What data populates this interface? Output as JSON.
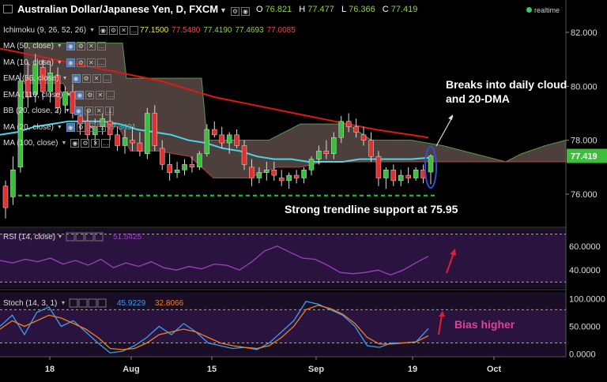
{
  "header": {
    "title": "Australian Dollar/Japanese Yen, D, FXCM",
    "ohlc": [
      {
        "k": "O",
        "v": "76.821"
      },
      {
        "k": "H",
        "v": "77.477"
      },
      {
        "k": "L",
        "v": "76.366"
      },
      {
        "k": "C",
        "v": "77.419"
      }
    ],
    "realtime": "realtime"
  },
  "indicators": [
    {
      "name": "Ichimoku (9, 26, 52, 26)",
      "values": [
        {
          "v": "77.1500",
          "c": "#e6e84a"
        },
        {
          "v": "77.5480",
          "c": "#e05050"
        },
        {
          "v": "77.4190",
          "c": "#8fd14f"
        },
        {
          "v": "77.4693",
          "c": "#8fd14f"
        },
        {
          "v": "77.0085",
          "c": "#e05050"
        }
      ]
    },
    {
      "name": "MA (50, close)",
      "values": []
    },
    {
      "name": "MA (10, close)",
      "values": []
    },
    {
      "name": "EMA (55, close)",
      "values": []
    },
    {
      "name": "EMA (110, close)",
      "values": []
    },
    {
      "name": "BB (20, close, 2)",
      "values": []
    },
    {
      "name": "MA (20, close)",
      "values": [
        {
          "v": "77.3491",
          "c": "#35c8e0"
        }
      ]
    },
    {
      "name": "MA (100, close)",
      "values": []
    }
  ],
  "annotations": {
    "breaks": [
      "Breaks into daily cloud",
      "and 20-DMA"
    ],
    "support": "Strong trendline support at 75.95",
    "bias": "Bias higher"
  },
  "rsi": {
    "label": "RSI (14, close)",
    "value": "51.5425"
  },
  "stoch": {
    "label": "Stoch (14, 3, 1)",
    "k": "45.9229",
    "d": "32.8066"
  },
  "price_axis": {
    "ticks": [
      "82.000",
      "80.000",
      "78.000",
      "76.000"
    ],
    "last": "77.419"
  },
  "rsi_axis": {
    "ticks": [
      "60.0000",
      "40.0000"
    ]
  },
  "stoch_axis": {
    "ticks": [
      "100.0000",
      "50.0000",
      "0.0000"
    ]
  },
  "time_axis": [
    "18",
    "Aug",
    "15",
    "Sep",
    "19",
    "Oct"
  ],
  "chart_data": {
    "type": "candlestick",
    "title": "Australian Dollar/Japanese Yen, D, FXCM",
    "price_ylim": [
      74.8,
      83.2
    ],
    "xlabels": [
      "18",
      "Aug",
      "15",
      "Sep",
      "19",
      "Oct"
    ],
    "candles": [
      {
        "o": 76.3,
        "h": 76.5,
        "l": 75.1,
        "c": 75.5
      },
      {
        "o": 75.9,
        "h": 77.4,
        "l": 75.6,
        "c": 76.9
      },
      {
        "o": 77.0,
        "h": 80.5,
        "l": 76.8,
        "c": 80.2
      },
      {
        "o": 80.3,
        "h": 80.9,
        "l": 79.2,
        "c": 79.6
      },
      {
        "o": 79.7,
        "h": 81.2,
        "l": 79.4,
        "c": 80.8
      },
      {
        "o": 80.7,
        "h": 81.0,
        "l": 79.5,
        "c": 79.8
      },
      {
        "o": 79.8,
        "h": 80.9,
        "l": 79.4,
        "c": 80.5
      },
      {
        "o": 80.4,
        "h": 80.7,
        "l": 79.0,
        "c": 79.2
      },
      {
        "o": 79.3,
        "h": 80.0,
        "l": 79.0,
        "c": 79.8
      },
      {
        "o": 79.8,
        "h": 80.1,
        "l": 78.8,
        "c": 79.0
      },
      {
        "o": 78.9,
        "h": 79.2,
        "l": 78.2,
        "c": 78.6
      },
      {
        "o": 78.7,
        "h": 79.1,
        "l": 78.0,
        "c": 78.2
      },
      {
        "o": 78.2,
        "h": 78.8,
        "l": 77.8,
        "c": 78.5
      },
      {
        "o": 78.5,
        "h": 79.0,
        "l": 78.2,
        "c": 78.8
      },
      {
        "o": 78.7,
        "h": 79.2,
        "l": 78.0,
        "c": 78.2
      },
      {
        "o": 78.2,
        "h": 78.5,
        "l": 77.6,
        "c": 77.8
      },
      {
        "o": 77.8,
        "h": 78.4,
        "l": 77.5,
        "c": 78.1
      },
      {
        "o": 78.0,
        "h": 78.5,
        "l": 77.6,
        "c": 77.9
      },
      {
        "o": 77.9,
        "h": 78.3,
        "l": 77.4,
        "c": 77.6
      },
      {
        "o": 77.5,
        "h": 79.2,
        "l": 77.3,
        "c": 79.0
      },
      {
        "o": 79.0,
        "h": 79.3,
        "l": 77.6,
        "c": 77.8
      },
      {
        "o": 77.7,
        "h": 78.0,
        "l": 76.9,
        "c": 77.1
      },
      {
        "o": 77.1,
        "h": 77.5,
        "l": 76.5,
        "c": 76.8
      },
      {
        "o": 76.8,
        "h": 77.2,
        "l": 76.6,
        "c": 76.9
      },
      {
        "o": 76.9,
        "h": 77.3,
        "l": 76.7,
        "c": 77.1
      },
      {
        "o": 77.1,
        "h": 77.4,
        "l": 76.8,
        "c": 77.0
      },
      {
        "o": 77.0,
        "h": 77.6,
        "l": 76.9,
        "c": 77.5
      },
      {
        "o": 77.5,
        "h": 78.6,
        "l": 77.4,
        "c": 78.4
      },
      {
        "o": 78.4,
        "h": 78.7,
        "l": 78.1,
        "c": 78.2
      },
      {
        "o": 78.2,
        "h": 78.5,
        "l": 77.7,
        "c": 77.9
      },
      {
        "o": 77.9,
        "h": 78.3,
        "l": 77.5,
        "c": 78.2
      },
      {
        "o": 78.2,
        "h": 78.4,
        "l": 77.7,
        "c": 77.8
      },
      {
        "o": 77.8,
        "h": 78.0,
        "l": 76.9,
        "c": 77.1
      },
      {
        "o": 77.0,
        "h": 77.3,
        "l": 76.3,
        "c": 76.6
      },
      {
        "o": 76.6,
        "h": 77.0,
        "l": 76.4,
        "c": 76.8
      },
      {
        "o": 76.8,
        "h": 77.2,
        "l": 76.5,
        "c": 76.9
      },
      {
        "o": 76.9,
        "h": 77.2,
        "l": 76.5,
        "c": 76.7
      },
      {
        "o": 76.6,
        "h": 76.9,
        "l": 76.3,
        "c": 76.5
      },
      {
        "o": 76.5,
        "h": 76.8,
        "l": 76.2,
        "c": 76.7
      },
      {
        "o": 76.7,
        "h": 76.9,
        "l": 76.4,
        "c": 76.6
      },
      {
        "o": 76.6,
        "h": 77.0,
        "l": 76.4,
        "c": 76.9
      },
      {
        "o": 76.9,
        "h": 77.4,
        "l": 76.7,
        "c": 77.3
      },
      {
        "o": 77.3,
        "h": 77.8,
        "l": 77.1,
        "c": 77.6
      },
      {
        "o": 77.6,
        "h": 78.0,
        "l": 77.3,
        "c": 77.5
      },
      {
        "o": 77.5,
        "h": 78.3,
        "l": 77.3,
        "c": 78.1
      },
      {
        "o": 78.1,
        "h": 78.9,
        "l": 77.9,
        "c": 78.7
      },
      {
        "o": 78.7,
        "h": 79.0,
        "l": 78.3,
        "c": 78.5
      },
      {
        "o": 78.5,
        "h": 78.8,
        "l": 78.1,
        "c": 78.3
      },
      {
        "o": 78.2,
        "h": 78.5,
        "l": 77.8,
        "c": 78.0
      },
      {
        "o": 78.0,
        "h": 78.3,
        "l": 77.2,
        "c": 77.4
      },
      {
        "o": 77.4,
        "h": 77.6,
        "l": 76.3,
        "c": 76.6
      },
      {
        "o": 76.6,
        "h": 77.0,
        "l": 76.2,
        "c": 76.9
      },
      {
        "o": 76.9,
        "h": 77.1,
        "l": 76.3,
        "c": 76.5
      },
      {
        "o": 76.5,
        "h": 76.9,
        "l": 76.3,
        "c": 76.7
      },
      {
        "o": 76.7,
        "h": 77.0,
        "l": 76.4,
        "c": 76.6
      },
      {
        "o": 76.6,
        "h": 77.0,
        "l": 76.5,
        "c": 76.9
      },
      {
        "o": 76.9,
        "h": 77.1,
        "l": 76.4,
        "c": 76.6
      },
      {
        "o": 76.821,
        "h": 77.477,
        "l": 76.366,
        "c": 77.419
      }
    ],
    "ma20": [
      78.2,
      78.3,
      78.5,
      78.6,
      78.7,
      78.7,
      78.7,
      78.6,
      78.4,
      78.3,
      78.2,
      78.0,
      77.9,
      77.7,
      77.6,
      77.4,
      77.3,
      77.3,
      77.2,
      77.2,
      77.2,
      77.3,
      77.3,
      77.3,
      77.3,
      77.35
    ],
    "ma100": [
      81.4,
      81.2,
      81.0,
      80.8,
      80.6,
      80.4,
      80.2,
      79.9,
      79.6,
      79.4,
      79.2,
      79.0,
      78.8,
      78.6,
      78.4,
      78.25,
      78.1
    ],
    "rsi": [
      48,
      46,
      49,
      47,
      50,
      45,
      48,
      44,
      49,
      42,
      46,
      43,
      47,
      42,
      40,
      43,
      41,
      45,
      44,
      40,
      47,
      56,
      60,
      55,
      50,
      49,
      44,
      38,
      37,
      38,
      40,
      36,
      40,
      46,
      51.5
    ],
    "stoch_k": [
      50,
      70,
      35,
      75,
      85,
      50,
      60,
      40,
      20,
      2,
      5,
      15,
      30,
      50,
      35,
      55,
      40,
      20,
      15,
      10,
      12,
      8,
      20,
      40,
      60,
      95,
      90,
      80,
      70,
      50,
      15,
      12,
      20,
      20,
      22,
      46
    ],
    "stoch_d": [
      45,
      60,
      50,
      60,
      70,
      65,
      55,
      45,
      30,
      10,
      8,
      10,
      20,
      35,
      40,
      45,
      40,
      30,
      20,
      15,
      12,
      10,
      15,
      30,
      50,
      80,
      88,
      82,
      72,
      55,
      30,
      18,
      18,
      20,
      22,
      33
    ],
    "support_level": 75.95,
    "price_last": 77.419,
    "rsi_ylim": [
      25,
      75
    ],
    "stoch_ylim": [
      -5,
      112
    ]
  }
}
